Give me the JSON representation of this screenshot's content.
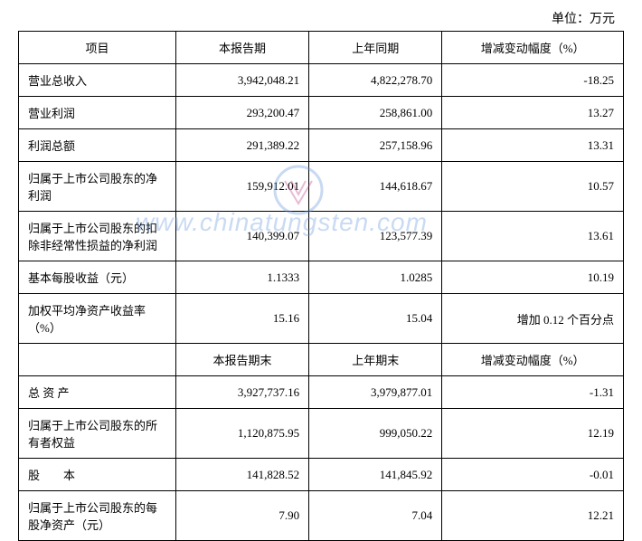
{
  "unit_label": "单位：万元",
  "headers": {
    "col1": "项目",
    "col2": "本报告期",
    "col3": "上年同期",
    "col4": "增减变动幅度（%）"
  },
  "section_headers": {
    "col2b": "本报告期末",
    "col3b": "上年期末",
    "col4b": "增减变动幅度（%）"
  },
  "rows": [
    {
      "label": "营业总收入",
      "current": "3,942,048.21",
      "prior": "4,822,278.70",
      "change": "-18.25",
      "tall": false
    },
    {
      "label": "营业利润",
      "current": "293,200.47",
      "prior": "258,861.00",
      "change": "13.27",
      "tall": false
    },
    {
      "label": "利润总额",
      "current": "291,389.22",
      "prior": "257,158.96",
      "change": "13.31",
      "tall": false
    },
    {
      "label": "归属于上市公司股东的净利润",
      "current": "159,912.01",
      "prior": "144,618.67",
      "change": "10.57",
      "tall": true
    },
    {
      "label": "归属于上市公司股东的扣除非经常性损益的净利润",
      "current": "140,399.07",
      "prior": "123,577.39",
      "change": "13.61",
      "tall": true
    },
    {
      "label": "基本每股收益（元）",
      "current": "1.1333",
      "prior": "1.0285",
      "change": "10.19",
      "tall": false
    },
    {
      "label": "加权平均净资产收益率（%）",
      "current": "15.16",
      "prior": "15.04",
      "change": "增加 0.12 个百分点",
      "tall": false
    }
  ],
  "rows2": [
    {
      "label": "总 资 产",
      "current": "3,927,737.16",
      "prior": "3,979,877.01",
      "change": "-1.31",
      "tall": false
    },
    {
      "label": "归属于上市公司股东的所有者权益",
      "current": "1,120,875.95",
      "prior": "999,050.22",
      "change": "12.19",
      "tall": true
    },
    {
      "label": "股　　本",
      "current": "141,828.52",
      "prior": "141,845.92",
      "change": "-0.01",
      "tall": false
    },
    {
      "label": "归属于上市公司股东的每股净资产（元）",
      "current": "7.90",
      "prior": "7.04",
      "change": "12.21",
      "tall": true
    }
  ],
  "watermark_text": "www.chinatungsten.com",
  "styling": {
    "border_color": "#000000",
    "background_color": "#ffffff",
    "font_family": "SimSun",
    "base_font_size": 13,
    "unit_font_size": 14,
    "watermark_color": "rgba(100,150,220,0.35)",
    "watermark_font_size": 28,
    "col_widths": [
      "26%",
      "22%",
      "22%",
      "30%"
    ]
  }
}
